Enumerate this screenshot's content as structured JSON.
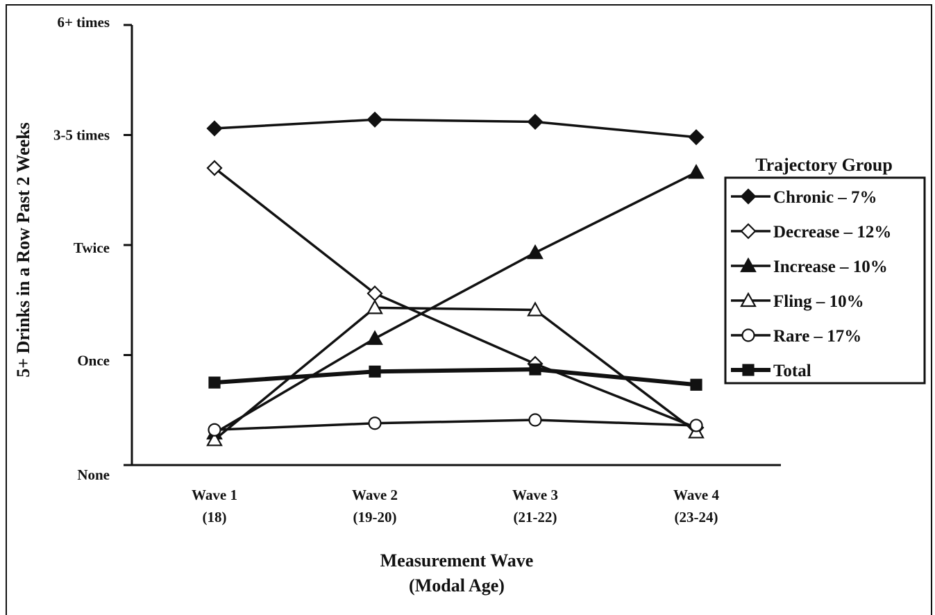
{
  "chart_data": {
    "type": "line",
    "ylabel": "5+ Drinks in a Row Past 2 Weeks",
    "xlabel_lines": [
      "Measurement Wave",
      "(Modal Age)"
    ],
    "y_tick_labels": [
      "None",
      "Once",
      "Twice",
      "3-5 times",
      "6+ times"
    ],
    "y_tick_values": [
      0,
      1,
      2,
      3,
      4
    ],
    "ylim": [
      0,
      4
    ],
    "x_tick_labels": [
      [
        "Wave 1",
        "(18)"
      ],
      [
        "Wave 2",
        "(19-20)"
      ],
      [
        "Wave 3",
        "(21-22)"
      ],
      [
        "Wave 4",
        "(23-24)"
      ]
    ],
    "x": [
      1,
      2,
      3,
      4
    ],
    "grid": false,
    "legend_title": "Trajectory Group",
    "legend_position": "right",
    "series": [
      {
        "name": "Chronic – 7%",
        "marker": "diamond-filled",
        "values": [
          3.06,
          3.14,
          3.12,
          2.98
        ]
      },
      {
        "name": "Decrease – 12%",
        "marker": "diamond-open",
        "values": [
          2.7,
          1.56,
          0.92,
          0.34
        ]
      },
      {
        "name": "Increase – 10%",
        "marker": "triangle-filled",
        "values": [
          0.29,
          1.15,
          1.93,
          2.66
        ]
      },
      {
        "name": "Fling – 10%",
        "marker": "triangle-open",
        "values": [
          0.23,
          1.43,
          1.41,
          0.3
        ]
      },
      {
        "name": "Rare – 17%",
        "marker": "circle-open",
        "values": [
          0.32,
          0.38,
          0.41,
          0.36
        ]
      },
      {
        "name": "Total",
        "marker": "square-filled",
        "thick": true,
        "values": [
          0.75,
          0.85,
          0.87,
          0.73
        ]
      }
    ]
  }
}
